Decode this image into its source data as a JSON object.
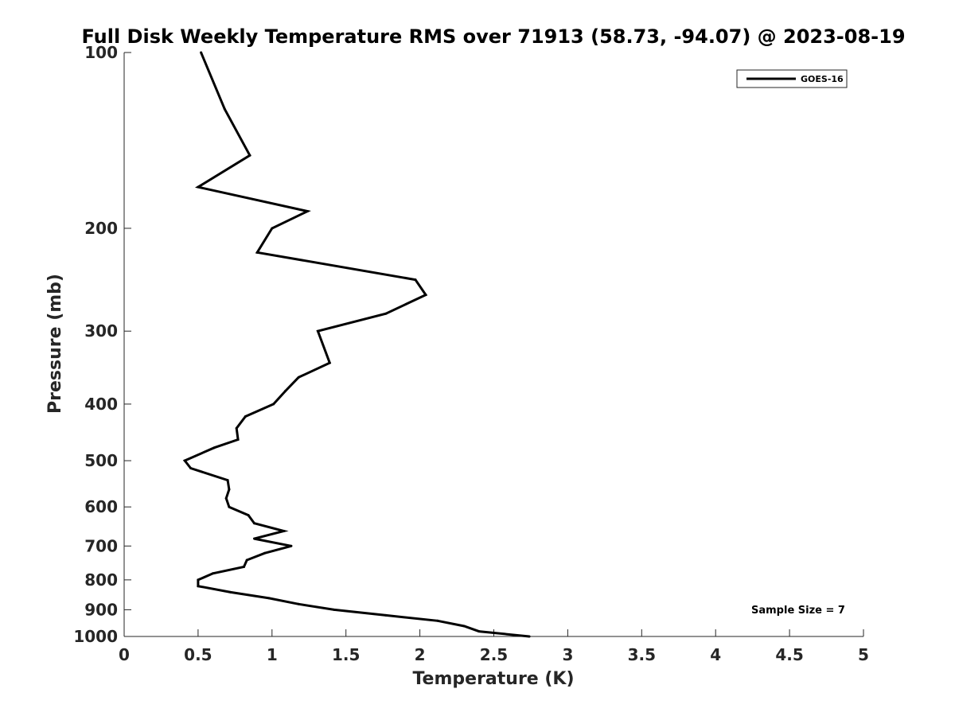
{
  "chart_data": {
    "type": "line",
    "title": "Full Disk Weekly Temperature RMS over 71913 (58.73, -94.07) @ 2023-08-19",
    "xlabel": "Temperature (K)",
    "ylabel": "Pressure (mb)",
    "xlim": [
      0,
      5
    ],
    "ylim": [
      100,
      1000
    ],
    "y_scale": "log",
    "y_reversed": true,
    "x_ticks": [
      0,
      0.5,
      1,
      1.5,
      2,
      2.5,
      3,
      3.5,
      4,
      4.5,
      5
    ],
    "x_tick_labels": [
      "0",
      "0.5",
      "1",
      "1.5",
      "2",
      "2.5",
      "3",
      "3.5",
      "4",
      "4.5",
      "5"
    ],
    "y_ticks": [
      100,
      200,
      300,
      400,
      500,
      600,
      700,
      800,
      900,
      1000
    ],
    "y_tick_labels": [
      "100",
      "200",
      "300",
      "400",
      "500",
      "600",
      "700",
      "800",
      "900",
      "1000"
    ],
    "grid": false,
    "legend_position": "top-right",
    "annotation": "Sample Size = 7",
    "line_color": "#000000",
    "series": [
      {
        "name": "GOES-16",
        "x": [
          0.52,
          0.68,
          0.85,
          0.5,
          1.24,
          1.0,
          0.9,
          1.97,
          2.04,
          1.77,
          1.31,
          1.39,
          1.18,
          1.09,
          1.01,
          0.82,
          0.76,
          0.77,
          0.61,
          0.41,
          0.45,
          0.7,
          0.71,
          0.69,
          0.71,
          0.84,
          0.88,
          1.08,
          0.88,
          1.13,
          0.95,
          0.83,
          0.81,
          0.6,
          0.5,
          0.5,
          0.72,
          0.98,
          1.18,
          1.42,
          1.77,
          2.12,
          2.3,
          2.4,
          2.74
        ],
        "y": [
          100,
          125,
          150,
          170,
          187,
          200,
          220,
          245,
          260,
          280,
          300,
          340,
          360,
          380,
          400,
          420,
          440,
          460,
          475,
          500,
          515,
          540,
          560,
          580,
          600,
          620,
          640,
          660,
          680,
          700,
          720,
          740,
          760,
          780,
          800,
          820,
          840,
          860,
          880,
          900,
          920,
          940,
          960,
          980,
          1000
        ]
      }
    ]
  }
}
